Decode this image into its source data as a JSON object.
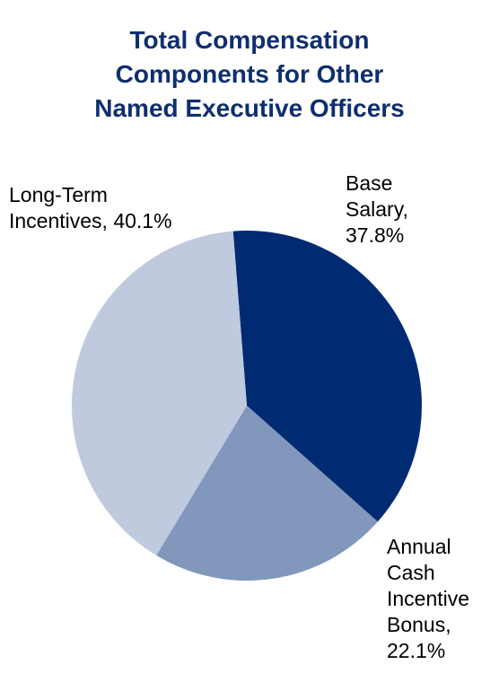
{
  "chart_data": {
    "type": "pie",
    "title_lines": [
      "Total Compensation",
      "Components for Other",
      "Named Executive Officers"
    ],
    "slices": [
      {
        "name": "Base Salary",
        "value": 37.8,
        "color": "#002b73",
        "label_lines": [
          "Base",
          "Salary,",
          "37.8%"
        ]
      },
      {
        "name": "Annual Cash Incentive Bonus",
        "value": 22.1,
        "color": "#8198bc",
        "label_lines": [
          "Annual",
          "Cash",
          "Incentive",
          "Bonus,",
          "22.1%"
        ]
      },
      {
        "name": "Long-Term Incentives",
        "value": 40.1,
        "color": "#bfcadf",
        "label_lines": [
          "Long-Term",
          "Incentives, 40.1%"
        ]
      }
    ],
    "legend": "none",
    "start_angle_deg": -4.5,
    "direction": "clockwise"
  }
}
